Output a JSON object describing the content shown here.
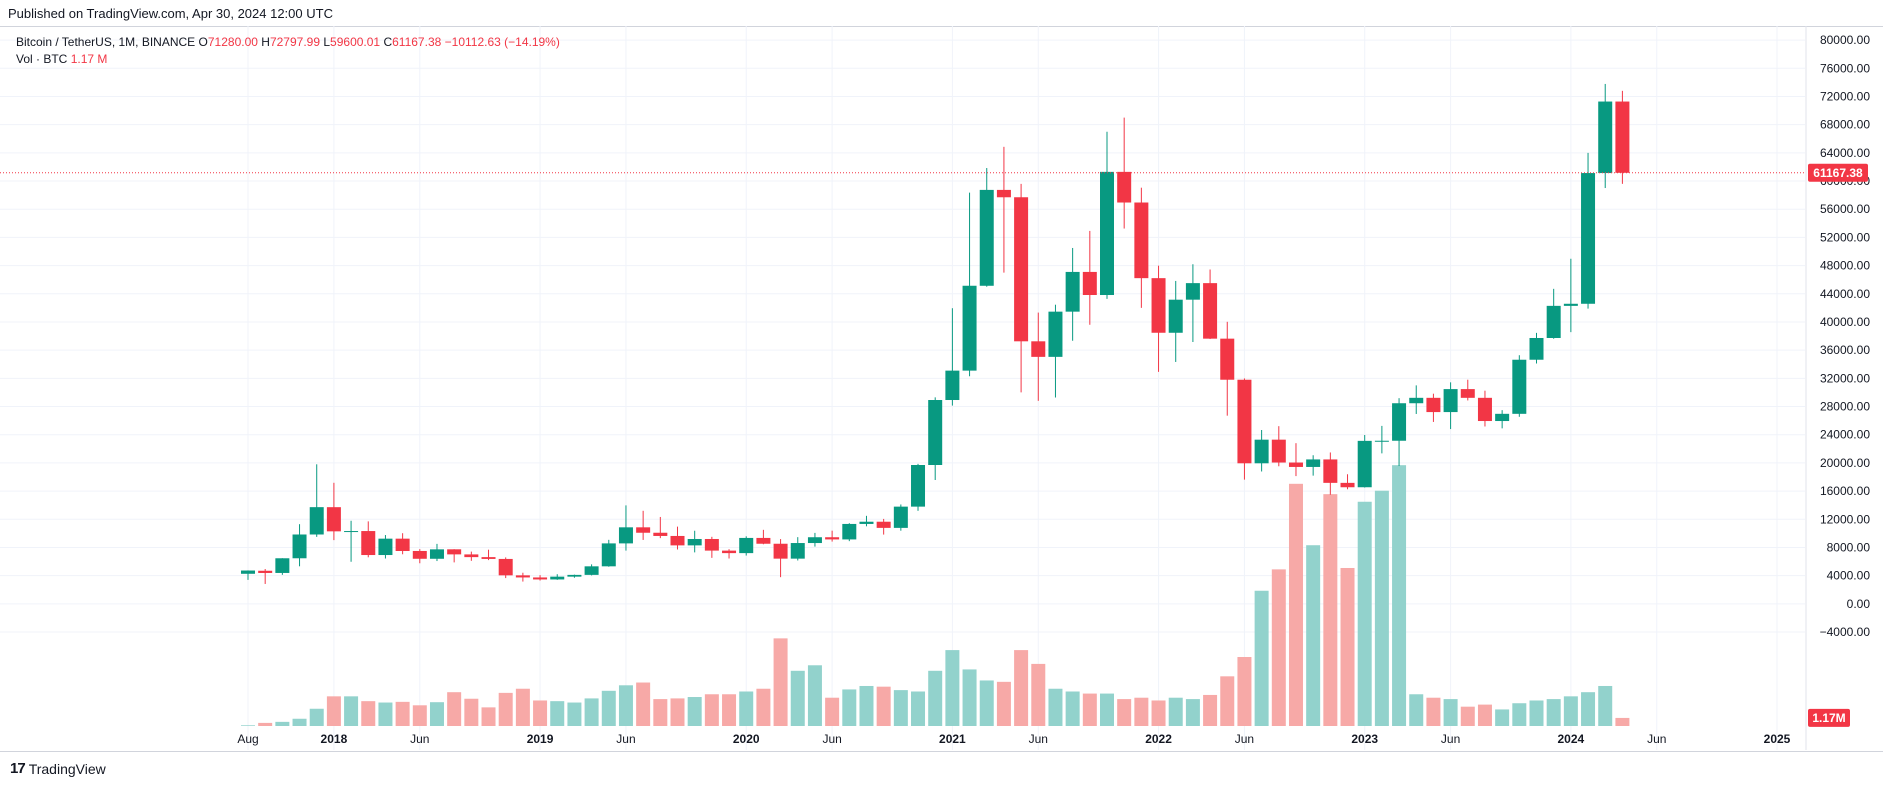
{
  "header": {
    "published": "Published on TradingView.com, Apr 30, 2024 12:00 UTC"
  },
  "legend": {
    "symbol": "Bitcoin / TetherUS, 1M, BINANCE",
    "open_label": "O",
    "open": "71280.00",
    "high_label": "H",
    "high": "72797.99",
    "low_label": "L",
    "low": "59600.01",
    "close_label": "C",
    "close": "61167.38",
    "change": "−10112.63 (−14.19%)",
    "vol_label": "Vol · BTC",
    "vol_value": "1.17 M"
  },
  "footer": {
    "logo": "17",
    "brand": "TradingView"
  },
  "colors": {
    "up": "#089981",
    "down": "#f23645",
    "vol_up": "#92d2cc",
    "vol_down": "#f7a9a7",
    "grid": "#f0f3fa"
  },
  "chart_data": {
    "type": "candlestick",
    "title": "Bitcoin / TetherUS, 1M, BINANCE",
    "interval": "1M",
    "price_axis": {
      "ylim": [
        -4000,
        82000
      ],
      "ticks": [
        "80000.00",
        "76000.00",
        "72000.00",
        "68000.00",
        "64000.00",
        "60000.00",
        "56000.00",
        "52000.00",
        "48000.00",
        "44000.00",
        "40000.00",
        "36000.00",
        "32000.00",
        "28000.00",
        "24000.00",
        "20000.00",
        "16000.00",
        "12000.00",
        "8000.00",
        "4000.00",
        "0.00",
        "−4000.00"
      ],
      "last_price_label": "61167.38",
      "last_volume_label": "1.17M"
    },
    "time_axis": {
      "labels": [
        "Aug",
        "2018",
        "Jun",
        "2019",
        "Jun",
        "2020",
        "Jun",
        "2021",
        "Jun",
        "2022",
        "Jun",
        "2023",
        "Jun",
        "2024",
        "Jun",
        "2025"
      ],
      "label_dates": [
        "2017-08",
        "2018-01",
        "2018-06",
        "2019-01",
        "2019-06",
        "2020-01",
        "2020-06",
        "2021-01",
        "2021-06",
        "2022-01",
        "2022-06",
        "2023-01",
        "2023-06",
        "2024-01",
        "2024-06",
        "2025-01"
      ]
    },
    "grid": true,
    "months": [
      "2017-08",
      "2017-09",
      "2017-10",
      "2017-11",
      "2017-12",
      "2018-01",
      "2018-02",
      "2018-03",
      "2018-04",
      "2018-05",
      "2018-06",
      "2018-07",
      "2018-08",
      "2018-09",
      "2018-10",
      "2018-11",
      "2018-12",
      "2019-01",
      "2019-02",
      "2019-03",
      "2019-04",
      "2019-05",
      "2019-06",
      "2019-07",
      "2019-08",
      "2019-09",
      "2019-10",
      "2019-11",
      "2019-12",
      "2020-01",
      "2020-02",
      "2020-03",
      "2020-04",
      "2020-05",
      "2020-06",
      "2020-07",
      "2020-08",
      "2020-09",
      "2020-10",
      "2020-11",
      "2020-12",
      "2021-01",
      "2021-02",
      "2021-03",
      "2021-04",
      "2021-05",
      "2021-06",
      "2021-07",
      "2021-08",
      "2021-09",
      "2021-10",
      "2021-11",
      "2021-12",
      "2022-01",
      "2022-02",
      "2022-03",
      "2022-04",
      "2022-05",
      "2022-06",
      "2022-07",
      "2022-08",
      "2022-09",
      "2022-10",
      "2022-11",
      "2022-12",
      "2023-01",
      "2023-02",
      "2023-03",
      "2023-04",
      "2023-05",
      "2023-06",
      "2023-07",
      "2023-08",
      "2023-09",
      "2023-10",
      "2023-11",
      "2023-12",
      "2024-01",
      "2024-02",
      "2024-03",
      "2024-04"
    ],
    "candles": [
      [
        4261,
        4745,
        3400,
        4724
      ],
      [
        4690,
        4939,
        2817,
        4378
      ],
      [
        4379,
        6470,
        4110,
        6463
      ],
      [
        6463,
        11300,
        5325,
        9838
      ],
      [
        9838,
        19798,
        9500,
        13717
      ],
      [
        13715,
        17176,
        9036,
        10285
      ],
      [
        10285,
        11786,
        5968,
        10326
      ],
      [
        10326,
        11700,
        6600,
        6923
      ],
      [
        6923,
        9759,
        6430,
        9246
      ],
      [
        9246,
        10020,
        7032,
        7495
      ],
      [
        7500,
        7760,
        5755,
        6391
      ],
      [
        6391,
        8507,
        6070,
        7730
      ],
      [
        7735,
        7750,
        5880,
        7016
      ],
      [
        7011,
        7410,
        6100,
        6626
      ],
      [
        6627,
        7680,
        6205,
        6370
      ],
      [
        6369,
        6586,
        3652,
        4041
      ],
      [
        4041,
        4410,
        3157,
        3742
      ],
      [
        3742,
        4070,
        3300,
        3457
      ],
      [
        3457,
        4200,
        3400,
        3855
      ],
      [
        3855,
        4140,
        3700,
        4105
      ],
      [
        4106,
        5600,
        4030,
        5320
      ],
      [
        5320,
        9080,
        5262,
        8575
      ],
      [
        8575,
        13970,
        7551,
        10855
      ],
      [
        10855,
        13200,
        9067,
        10085
      ],
      [
        10086,
        12326,
        9320,
        9630
      ],
      [
        9630,
        10960,
        7700,
        8293
      ],
      [
        8293,
        10370,
        7300,
        9200
      ],
      [
        9200,
        9510,
        6520,
        7550
      ],
      [
        7550,
        7750,
        6430,
        7195
      ],
      [
        7195,
        9578,
        6850,
        9350
      ],
      [
        9350,
        10500,
        8450,
        8525
      ],
      [
        8525,
        9188,
        3782,
        6410
      ],
      [
        6410,
        9460,
        6150,
        8625
      ],
      [
        8625,
        10067,
        8117,
        9448
      ],
      [
        9448,
        10380,
        8833,
        9138
      ],
      [
        9138,
        11444,
        8893,
        11335
      ],
      [
        11335,
        12486,
        11000,
        11650
      ],
      [
        11650,
        12050,
        9825,
        10776
      ],
      [
        10776,
        14100,
        10375,
        13791
      ],
      [
        13791,
        19863,
        13195,
        19700
      ],
      [
        19700,
        29300,
        17572,
        28923
      ],
      [
        28923,
        41950,
        28130,
        33092
      ],
      [
        33092,
        58350,
        32296,
        45137
      ],
      [
        45134,
        61844,
        45000,
        58740
      ],
      [
        58740,
        64854,
        47000,
        57694
      ],
      [
        57697,
        59600,
        30000,
        37253
      ],
      [
        37253,
        41330,
        28805,
        35045
      ],
      [
        35046,
        42448,
        29278,
        41462
      ],
      [
        41461,
        50500,
        37332,
        47100
      ],
      [
        47100,
        52920,
        39600,
        43824
      ],
      [
        43824,
        67000,
        43283,
        61300
      ],
      [
        61300,
        69000,
        53256,
        56950
      ],
      [
        56950,
        59053,
        42000,
        46216
      ],
      [
        46216,
        47990,
        32917,
        38467
      ],
      [
        38466,
        45821,
        34323,
        43160
      ],
      [
        43160,
        48189,
        37155,
        45510
      ],
      [
        45510,
        47444,
        37578,
        37630
      ],
      [
        37630,
        40023,
        26700,
        31801
      ],
      [
        31801,
        31986,
        17622,
        19942
      ],
      [
        19942,
        24668,
        18781,
        23293
      ],
      [
        23296,
        25211,
        19520,
        20050
      ],
      [
        20050,
        22799,
        18125,
        19423
      ],
      [
        19423,
        21085,
        18190,
        20490
      ],
      [
        20490,
        21480,
        15476,
        17165
      ],
      [
        17165,
        18387,
        16256,
        16542
      ],
      [
        16542,
        23960,
        16499,
        23125
      ],
      [
        23125,
        25250,
        21351,
        23141
      ],
      [
        23141,
        29184,
        19549,
        28465
      ],
      [
        28465,
        31000,
        26942,
        29233
      ],
      [
        29233,
        29820,
        25811,
        27210
      ],
      [
        27210,
        31431,
        24800,
        30472
      ],
      [
        30472,
        31804,
        28861,
        29232
      ],
      [
        29232,
        30244,
        25166,
        25940
      ],
      [
        25940,
        27483,
        24901,
        26962
      ],
      [
        26962,
        35280,
        26538,
        34639
      ],
      [
        34639,
        38450,
        34097,
        37724
      ],
      [
        37724,
        44700,
        37615,
        42284
      ],
      [
        42283,
        48969,
        38555,
        42580
      ],
      [
        42580,
        64000,
        41884,
        61130
      ],
      [
        61130,
        73777,
        59005,
        71280
      ],
      [
        71280,
        72797.99,
        59600.01,
        61167.38
      ]
    ],
    "volume_btc_millions": [
      0.1,
      0.45,
      0.6,
      1.05,
      2.5,
      4.3,
      4.3,
      3.6,
      3.4,
      3.5,
      3.0,
      3.45,
      4.9,
      3.95,
      2.7,
      4.8,
      5.4,
      3.7,
      3.6,
      3.4,
      4.0,
      5.1,
      5.9,
      6.3,
      3.9,
      4.0,
      4.2,
      4.6,
      4.6,
      5.0,
      5.4,
      12.7,
      8.0,
      8.8,
      4.1,
      5.3,
      5.8,
      5.7,
      5.2,
      5.0,
      8.0,
      11.0,
      8.2,
      6.6,
      6.4,
      11.0,
      9.0,
      5.4,
      5.0,
      4.7,
      4.7,
      3.9,
      4.1,
      3.7,
      4.1,
      3.9,
      4.5,
      7.2,
      10.0,
      19.6,
      22.7,
      35.1,
      26.2,
      33.6,
      22.9,
      32.5,
      34.1,
      37.8,
      4.6,
      4.1,
      3.9,
      2.8,
      3.1,
      2.4,
      3.3,
      3.7,
      3.9,
      4.3,
      4.9,
      5.8,
      1.17
    ]
  }
}
